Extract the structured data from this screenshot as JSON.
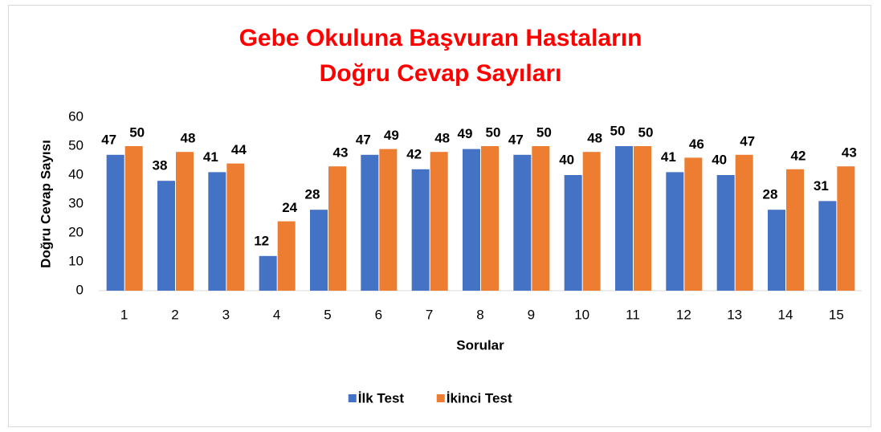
{
  "chart_data": {
    "type": "bar",
    "title": "Gebe Okuluna Başvuran Hastaların Doğru Cevap Sayıları",
    "xlabel": "Sorular",
    "ylabel": "Doğru Cevap Sayısı",
    "categories": [
      "1",
      "2",
      "3",
      "4",
      "5",
      "6",
      "7",
      "8",
      "9",
      "10",
      "11",
      "12",
      "13",
      "14",
      "15"
    ],
    "series": [
      {
        "name": "İlk Test",
        "color": "#4472c4",
        "values": [
          47,
          38,
          41,
          12,
          28,
          47,
          42,
          49,
          47,
          40,
          50,
          41,
          40,
          28,
          31
        ]
      },
      {
        "name": "İkinci Test",
        "color": "#ed7d31",
        "values": [
          50,
          48,
          44,
          24,
          43,
          49,
          48,
          50,
          50,
          48,
          50,
          46,
          47,
          42,
          43
        ]
      }
    ],
    "ylim": [
      0,
      60
    ],
    "yticks": [
      0,
      10,
      20,
      30,
      40,
      50,
      60
    ],
    "grid": false,
    "legend": "bottom"
  }
}
